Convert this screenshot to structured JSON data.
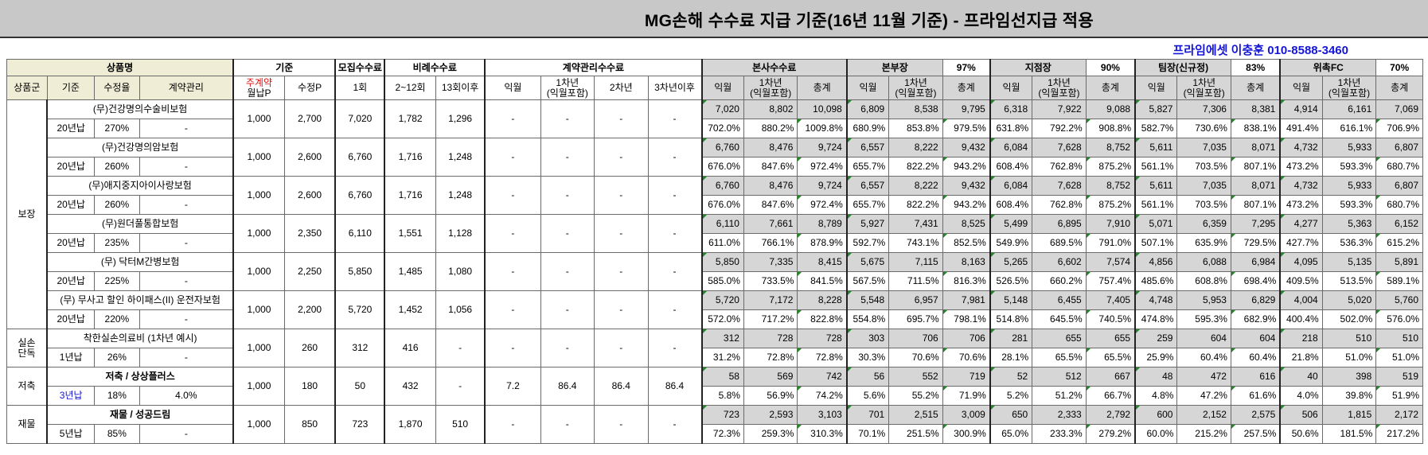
{
  "title": "MG손해 수수료 지급 기준(16년 11월 기준) - 프라임선지급 적용",
  "contact": "프라임에셋 이충훈 010-8588-3460",
  "header_top": {
    "product_name": "상품명",
    "basis": "기준",
    "recruit_fee": "모집수수료",
    "proportional_fee": "비례수수료",
    "contract_mgmt_fee": "계약관리수수료",
    "hq_fee": "본사수수료",
    "dept_head": "본부장",
    "dept_head_pct": "97%",
    "branch_head": "지점장",
    "branch_head_pct": "90%",
    "team_head": "팀장(신규정)",
    "team_head_pct": "83%",
    "fc": "위촉FC",
    "fc_pct": "70%"
  },
  "header_sub": {
    "group": "상품군",
    "base": "기준",
    "fix_rate": "수정율",
    "contract": "계약관리",
    "monthly_p_line1": "주계약",
    "monthly_p_line2": "월납P",
    "fix_p": "수정P",
    "first": "1회",
    "m2_12": "2~12회",
    "m13": "13회이후",
    "next_month": "익월",
    "year1_line1": "1차년",
    "year1_line2": "(익월포함)",
    "year2": "2차년",
    "year3": "3차년이후",
    "total": "총계",
    "year1_incl_line1": "1차년",
    "year1_incl_line2": "(익월포함)"
  },
  "groups": [
    {
      "name": "보장"
    },
    {
      "name_line1": "실손",
      "name_line2": "단독"
    },
    {
      "name": "저축"
    },
    {
      "name": "재물"
    }
  ],
  "products": [
    {
      "name": "(무)건강명의수술비보험",
      "term": "20년납",
      "rate": "270%",
      "contract": "-",
      "monthly_p": "1,000",
      "fix_p": "2,700",
      "first": "7,020",
      "m2_12": "1,782",
      "m13": "1,296",
      "cm_next": "-",
      "cm_y1": "-",
      "cm_y2": "-",
      "cm_y3": "-",
      "amt": [
        "7,020",
        "8,802",
        "10,098",
        "6,809",
        "8,538",
        "9,795",
        "6,318",
        "7,922",
        "9,088",
        "5,827",
        "7,306",
        "8,381",
        "4,914",
        "6,161",
        "7,069"
      ],
      "pct": [
        "702.0%",
        "880.2%",
        "1009.8%",
        "680.9%",
        "853.8%",
        "979.5%",
        "631.8%",
        "792.2%",
        "908.8%",
        "582.7%",
        "730.6%",
        "838.1%",
        "491.4%",
        "616.1%",
        "706.9%"
      ]
    },
    {
      "name": "(무)건강명의암보험",
      "term": "20년납",
      "rate": "260%",
      "contract": "-",
      "monthly_p": "1,000",
      "fix_p": "2,600",
      "first": "6,760",
      "m2_12": "1,716",
      "m13": "1,248",
      "cm_next": "-",
      "cm_y1": "-",
      "cm_y2": "-",
      "cm_y3": "-",
      "amt": [
        "6,760",
        "8,476",
        "9,724",
        "6,557",
        "8,222",
        "9,432",
        "6,084",
        "7,628",
        "8,752",
        "5,611",
        "7,035",
        "8,071",
        "4,732",
        "5,933",
        "6,807"
      ],
      "pct": [
        "676.0%",
        "847.6%",
        "972.4%",
        "655.7%",
        "822.2%",
        "943.2%",
        "608.4%",
        "762.8%",
        "875.2%",
        "561.1%",
        "703.5%",
        "807.1%",
        "473.2%",
        "593.3%",
        "680.7%"
      ]
    },
    {
      "name": "(무)애지중지아이사랑보험",
      "term": "20년납",
      "rate": "260%",
      "contract": "-",
      "monthly_p": "1,000",
      "fix_p": "2,600",
      "first": "6,760",
      "m2_12": "1,716",
      "m13": "1,248",
      "cm_next": "-",
      "cm_y1": "-",
      "cm_y2": "-",
      "cm_y3": "-",
      "amt": [
        "6,760",
        "8,476",
        "9,724",
        "6,557",
        "8,222",
        "9,432",
        "6,084",
        "7,628",
        "8,752",
        "5,611",
        "7,035",
        "8,071",
        "4,732",
        "5,933",
        "6,807"
      ],
      "pct": [
        "676.0%",
        "847.6%",
        "972.4%",
        "655.7%",
        "822.2%",
        "943.2%",
        "608.4%",
        "762.8%",
        "875.2%",
        "561.1%",
        "703.5%",
        "807.1%",
        "473.2%",
        "593.3%",
        "680.7%"
      ]
    },
    {
      "name": "(무)원더풀통합보험",
      "term": "20년납",
      "rate": "235%",
      "contract": "-",
      "monthly_p": "1,000",
      "fix_p": "2,350",
      "first": "6,110",
      "m2_12": "1,551",
      "m13": "1,128",
      "cm_next": "-",
      "cm_y1": "-",
      "cm_y2": "-",
      "cm_y3": "-",
      "amt": [
        "6,110",
        "7,661",
        "8,789",
        "5,927",
        "7,431",
        "8,525",
        "5,499",
        "6,895",
        "7,910",
        "5,071",
        "6,359",
        "7,295",
        "4,277",
        "5,363",
        "6,152"
      ],
      "pct": [
        "611.0%",
        "766.1%",
        "878.9%",
        "592.7%",
        "743.1%",
        "852.5%",
        "549.9%",
        "689.5%",
        "791.0%",
        "507.1%",
        "635.9%",
        "729.5%",
        "427.7%",
        "536.3%",
        "615.2%"
      ]
    },
    {
      "name": "(무) 닥터M간병보험",
      "term": "20년납",
      "rate": "225%",
      "contract": "-",
      "monthly_p": "1,000",
      "fix_p": "2,250",
      "first": "5,850",
      "m2_12": "1,485",
      "m13": "1,080",
      "cm_next": "-",
      "cm_y1": "-",
      "cm_y2": "-",
      "cm_y3": "-",
      "amt": [
        "5,850",
        "7,335",
        "8,415",
        "5,675",
        "7,115",
        "8,163",
        "5,265",
        "6,602",
        "7,574",
        "4,856",
        "6,088",
        "6,984",
        "4,095",
        "5,135",
        "5,891"
      ],
      "pct": [
        "585.0%",
        "733.5%",
        "841.5%",
        "567.5%",
        "711.5%",
        "816.3%",
        "526.5%",
        "660.2%",
        "757.4%",
        "485.6%",
        "608.8%",
        "698.4%",
        "409.5%",
        "513.5%",
        "589.1%"
      ]
    },
    {
      "name": "(무) 무사고 할인 하이패스(II) 운전자보험",
      "term": "20년납",
      "rate": "220%",
      "contract": "-",
      "monthly_p": "1,000",
      "fix_p": "2,200",
      "first": "5,720",
      "m2_12": "1,452",
      "m13": "1,056",
      "cm_next": "-",
      "cm_y1": "-",
      "cm_y2": "-",
      "cm_y3": "-",
      "amt": [
        "5,720",
        "7,172",
        "8,228",
        "5,548",
        "6,957",
        "7,981",
        "5,148",
        "6,455",
        "7,405",
        "4,748",
        "5,953",
        "6,829",
        "4,004",
        "5,020",
        "5,760"
      ],
      "pct": [
        "572.0%",
        "717.2%",
        "822.8%",
        "554.8%",
        "695.7%",
        "798.1%",
        "514.8%",
        "645.5%",
        "740.5%",
        "474.8%",
        "595.3%",
        "682.9%",
        "400.4%",
        "502.0%",
        "576.0%"
      ]
    },
    {
      "name": "착한실손의료비 (1차년 예시)",
      "term": "1년납",
      "rate": "26%",
      "contract": "-",
      "monthly_p": "1,000",
      "fix_p": "260",
      "first": "312",
      "m2_12": "416",
      "m13": "-",
      "cm_next": "-",
      "cm_y1": "-",
      "cm_y2": "-",
      "cm_y3": "-",
      "amt": [
        "312",
        "728",
        "728",
        "303",
        "706",
        "706",
        "281",
        "655",
        "655",
        "259",
        "604",
        "604",
        "218",
        "510",
        "510"
      ],
      "pct": [
        "31.2%",
        "72.8%",
        "72.8%",
        "30.3%",
        "70.6%",
        "70.6%",
        "28.1%",
        "65.5%",
        "65.5%",
        "25.9%",
        "60.4%",
        "60.4%",
        "21.8%",
        "51.0%",
        "51.0%"
      ]
    },
    {
      "name": "저축 / 상상플러스",
      "term": "3년납",
      "rate": "18%",
      "contract": "4.0%",
      "monthly_p": "1,000",
      "fix_p": "180",
      "first": "50",
      "m2_12": "432",
      "m13": "-",
      "cm_next": "7.2",
      "cm_y1": "86.4",
      "cm_y2": "86.4",
      "cm_y3": "86.4",
      "amt": [
        "58",
        "569",
        "742",
        "56",
        "552",
        "719",
        "52",
        "512",
        "667",
        "48",
        "472",
        "616",
        "40",
        "398",
        "519"
      ],
      "pct": [
        "5.8%",
        "56.9%",
        "74.2%",
        "5.6%",
        "55.2%",
        "71.9%",
        "5.2%",
        "51.2%",
        "66.7%",
        "4.8%",
        "47.2%",
        "61.6%",
        "4.0%",
        "39.8%",
        "51.9%"
      ]
    },
    {
      "name": "재물 / 성공드림",
      "term": "5년납",
      "rate": "85%",
      "contract": "-",
      "monthly_p": "1,000",
      "fix_p": "850",
      "first": "723",
      "m2_12": "1,870",
      "m13": "510",
      "cm_next": "-",
      "cm_y1": "-",
      "cm_y2": "-",
      "cm_y3": "-",
      "amt": [
        "723",
        "2,593",
        "3,103",
        "701",
        "2,515",
        "3,009",
        "650",
        "2,333",
        "2,792",
        "600",
        "2,152",
        "2,575",
        "506",
        "1,815",
        "2,172"
      ],
      "pct": [
        "72.3%",
        "259.3%",
        "310.3%",
        "70.1%",
        "251.5%",
        "300.9%",
        "65.0%",
        "233.3%",
        "279.2%",
        "60.0%",
        "215.2%",
        "257.5%",
        "50.6%",
        "181.5%",
        "217.2%"
      ]
    }
  ]
}
